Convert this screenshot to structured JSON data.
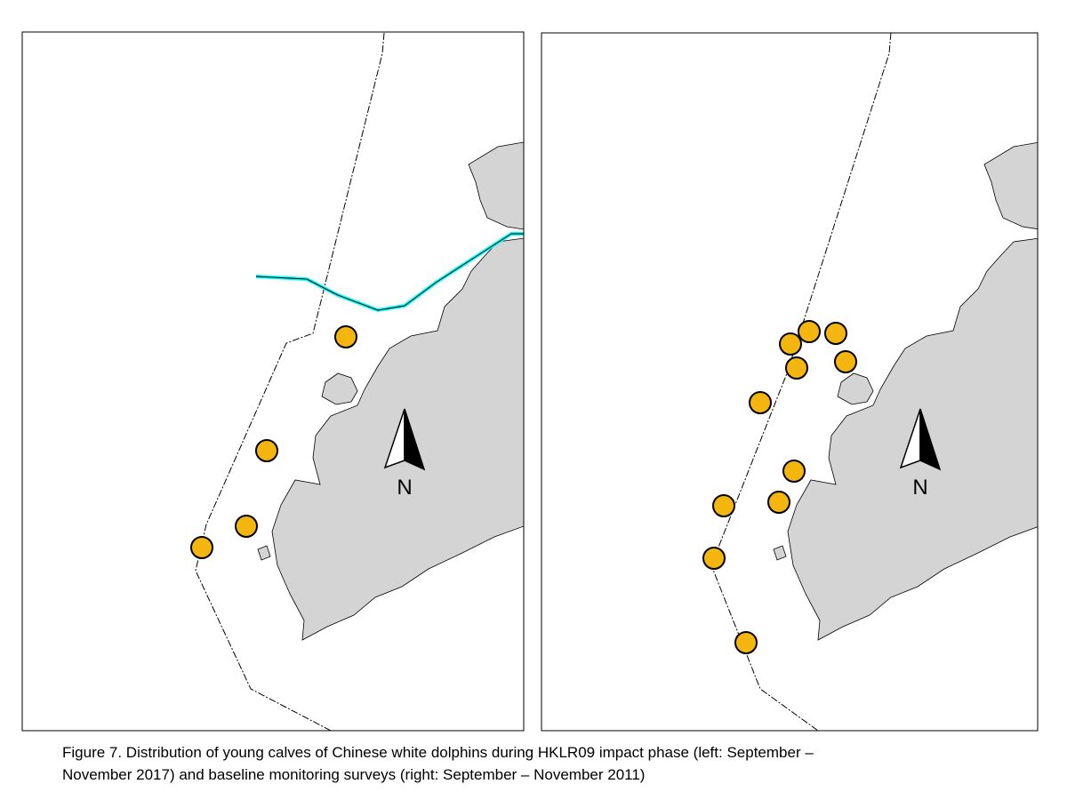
{
  "panels": [
    {
      "north_label": "N"
    },
    {
      "north_label": "N"
    }
  ],
  "caption": [
    "Figure 7.  Distribution of young calves of Chinese white dolphins during HKLR09 impact phase (left: September –",
    "November 2017) and baseline monitoring surveys (right: September – November 2011)"
  ]
}
